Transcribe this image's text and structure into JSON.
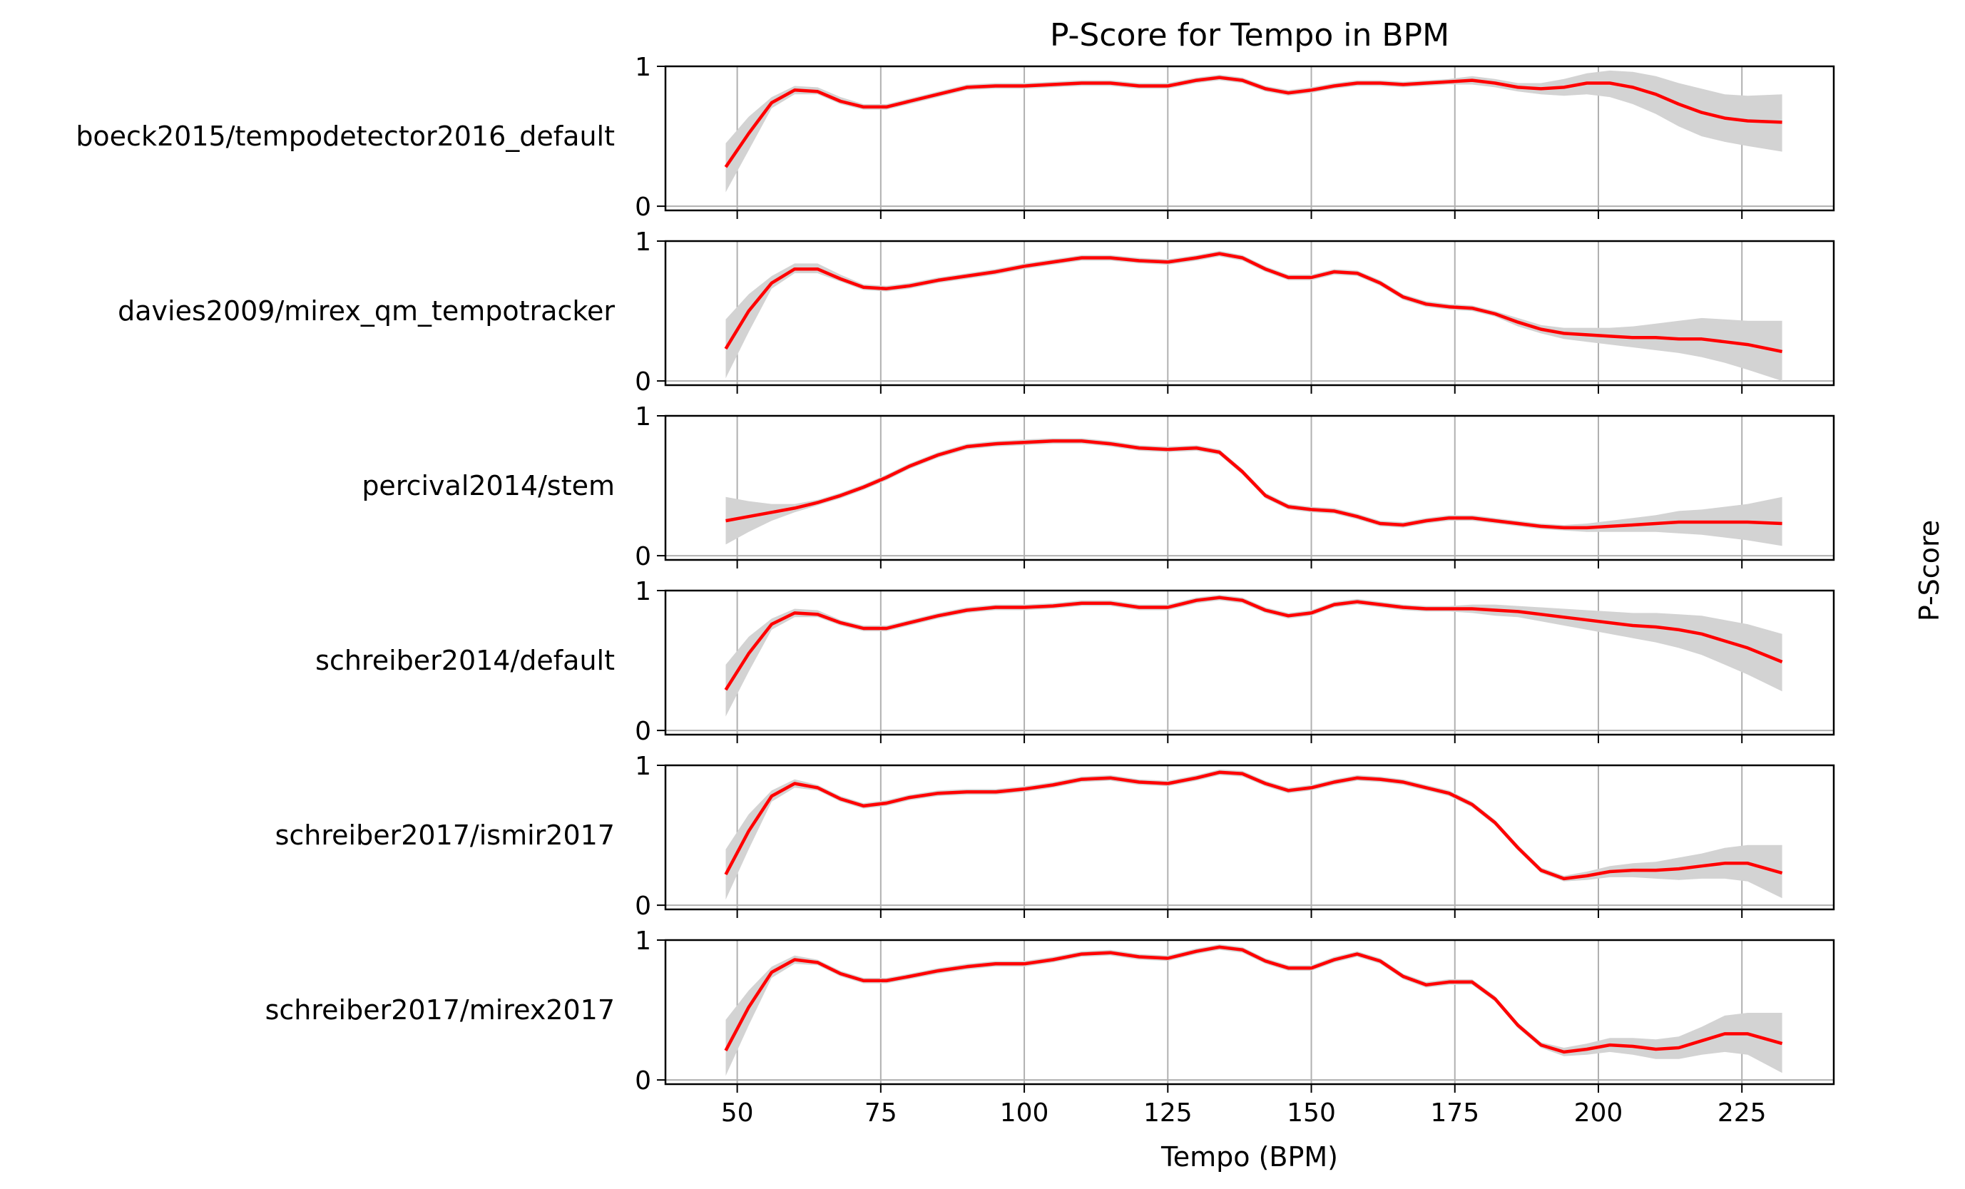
{
  "chart_data": {
    "type": "line",
    "title": "P-Score for Tempo in BPM",
    "xlabel": "Tempo (BPM)",
    "ylabel": "P-Score",
    "xlim": [
      37.5,
      241
    ],
    "ylim": [
      -0.03,
      1.0
    ],
    "xticks": [
      50,
      75,
      100,
      125,
      150,
      175,
      200,
      225
    ],
    "yticks": [
      0,
      1
    ],
    "grid": true,
    "line_color": "#ff0000",
    "band_color": "#d3d3d3",
    "x": [
      48,
      52,
      56,
      60,
      64,
      68,
      72,
      76,
      80,
      85,
      90,
      95,
      100,
      105,
      110,
      115,
      120,
      125,
      130,
      134,
      138,
      142,
      146,
      150,
      154,
      158,
      162,
      166,
      170,
      174,
      178,
      182,
      186,
      190,
      194,
      198,
      202,
      206,
      210,
      214,
      218,
      222,
      226,
      232
    ],
    "series": [
      {
        "name": "boeck2015/tempodetector2016_default",
        "values": [
          0.28,
          0.52,
          0.74,
          0.83,
          0.82,
          0.75,
          0.71,
          0.71,
          0.75,
          0.8,
          0.85,
          0.86,
          0.86,
          0.87,
          0.88,
          0.88,
          0.86,
          0.86,
          0.9,
          0.92,
          0.9,
          0.84,
          0.81,
          0.83,
          0.86,
          0.88,
          0.88,
          0.87,
          0.88,
          0.89,
          0.9,
          0.88,
          0.85,
          0.84,
          0.85,
          0.88,
          0.88,
          0.85,
          0.8,
          0.73,
          0.67,
          0.63,
          0.61,
          0.6
        ],
        "lower": [
          0.1,
          0.4,
          0.7,
          0.8,
          0.8,
          0.73,
          0.69,
          0.69,
          0.73,
          0.78,
          0.83,
          0.84,
          0.84,
          0.85,
          0.86,
          0.86,
          0.84,
          0.84,
          0.88,
          0.9,
          0.88,
          0.82,
          0.79,
          0.81,
          0.84,
          0.86,
          0.86,
          0.85,
          0.86,
          0.87,
          0.87,
          0.85,
          0.82,
          0.8,
          0.79,
          0.8,
          0.78,
          0.73,
          0.66,
          0.57,
          0.5,
          0.46,
          0.43,
          0.39
        ],
        "upper": [
          0.45,
          0.64,
          0.78,
          0.86,
          0.85,
          0.78,
          0.73,
          0.73,
          0.77,
          0.82,
          0.87,
          0.88,
          0.88,
          0.89,
          0.9,
          0.9,
          0.88,
          0.88,
          0.92,
          0.94,
          0.92,
          0.86,
          0.83,
          0.85,
          0.88,
          0.9,
          0.9,
          0.89,
          0.9,
          0.91,
          0.93,
          0.91,
          0.88,
          0.88,
          0.91,
          0.95,
          0.97,
          0.96,
          0.93,
          0.88,
          0.84,
          0.8,
          0.79,
          0.8
        ]
      },
      {
        "name": "davies2009/mirex_qm_tempotracker",
        "values": [
          0.23,
          0.5,
          0.7,
          0.8,
          0.8,
          0.73,
          0.67,
          0.66,
          0.68,
          0.72,
          0.75,
          0.78,
          0.82,
          0.85,
          0.88,
          0.88,
          0.86,
          0.85,
          0.88,
          0.91,
          0.88,
          0.8,
          0.74,
          0.74,
          0.78,
          0.77,
          0.7,
          0.6,
          0.55,
          0.53,
          0.52,
          0.48,
          0.42,
          0.37,
          0.34,
          0.33,
          0.32,
          0.31,
          0.31,
          0.3,
          0.3,
          0.28,
          0.26,
          0.21
        ],
        "lower": [
          0.02,
          0.35,
          0.66,
          0.77,
          0.77,
          0.71,
          0.65,
          0.64,
          0.66,
          0.7,
          0.73,
          0.76,
          0.8,
          0.83,
          0.86,
          0.86,
          0.84,
          0.83,
          0.86,
          0.89,
          0.86,
          0.78,
          0.72,
          0.72,
          0.76,
          0.75,
          0.68,
          0.58,
          0.53,
          0.51,
          0.5,
          0.46,
          0.39,
          0.34,
          0.3,
          0.28,
          0.26,
          0.24,
          0.22,
          0.2,
          0.17,
          0.13,
          0.08,
          0.0
        ],
        "upper": [
          0.44,
          0.62,
          0.75,
          0.84,
          0.84,
          0.76,
          0.69,
          0.68,
          0.7,
          0.74,
          0.77,
          0.8,
          0.84,
          0.87,
          0.9,
          0.9,
          0.88,
          0.87,
          0.9,
          0.93,
          0.9,
          0.82,
          0.76,
          0.76,
          0.8,
          0.79,
          0.72,
          0.62,
          0.57,
          0.55,
          0.54,
          0.5,
          0.45,
          0.4,
          0.38,
          0.38,
          0.38,
          0.39,
          0.41,
          0.43,
          0.45,
          0.44,
          0.43,
          0.43
        ]
      },
      {
        "name": "percival2014/stem",
        "values": [
          0.25,
          0.28,
          0.31,
          0.34,
          0.38,
          0.43,
          0.49,
          0.56,
          0.64,
          0.72,
          0.78,
          0.8,
          0.81,
          0.82,
          0.82,
          0.8,
          0.77,
          0.76,
          0.77,
          0.74,
          0.6,
          0.43,
          0.35,
          0.33,
          0.32,
          0.28,
          0.23,
          0.22,
          0.25,
          0.27,
          0.27,
          0.25,
          0.23,
          0.21,
          0.2,
          0.2,
          0.21,
          0.22,
          0.23,
          0.24,
          0.24,
          0.24,
          0.24,
          0.23
        ],
        "lower": [
          0.08,
          0.17,
          0.25,
          0.31,
          0.36,
          0.41,
          0.47,
          0.54,
          0.62,
          0.7,
          0.76,
          0.78,
          0.79,
          0.8,
          0.8,
          0.78,
          0.75,
          0.74,
          0.75,
          0.72,
          0.58,
          0.41,
          0.33,
          0.31,
          0.3,
          0.26,
          0.21,
          0.2,
          0.23,
          0.25,
          0.25,
          0.23,
          0.21,
          0.19,
          0.18,
          0.17,
          0.17,
          0.17,
          0.17,
          0.16,
          0.15,
          0.13,
          0.11,
          0.07
        ],
        "upper": [
          0.42,
          0.39,
          0.37,
          0.37,
          0.4,
          0.45,
          0.51,
          0.58,
          0.66,
          0.74,
          0.8,
          0.82,
          0.83,
          0.84,
          0.84,
          0.82,
          0.79,
          0.78,
          0.79,
          0.76,
          0.62,
          0.45,
          0.37,
          0.35,
          0.34,
          0.3,
          0.25,
          0.24,
          0.27,
          0.29,
          0.29,
          0.27,
          0.25,
          0.23,
          0.22,
          0.23,
          0.25,
          0.27,
          0.29,
          0.32,
          0.33,
          0.35,
          0.37,
          0.42
        ]
      },
      {
        "name": "schreiber2014/default",
        "values": [
          0.29,
          0.55,
          0.76,
          0.84,
          0.83,
          0.77,
          0.73,
          0.73,
          0.77,
          0.82,
          0.86,
          0.88,
          0.88,
          0.89,
          0.91,
          0.91,
          0.88,
          0.88,
          0.93,
          0.95,
          0.93,
          0.86,
          0.82,
          0.84,
          0.9,
          0.92,
          0.9,
          0.88,
          0.87,
          0.87,
          0.87,
          0.86,
          0.85,
          0.83,
          0.81,
          0.79,
          0.77,
          0.75,
          0.74,
          0.72,
          0.69,
          0.64,
          0.59,
          0.49
        ],
        "lower": [
          0.1,
          0.42,
          0.72,
          0.81,
          0.81,
          0.75,
          0.71,
          0.71,
          0.75,
          0.8,
          0.84,
          0.86,
          0.86,
          0.87,
          0.89,
          0.89,
          0.86,
          0.86,
          0.91,
          0.93,
          0.91,
          0.84,
          0.8,
          0.82,
          0.88,
          0.9,
          0.88,
          0.86,
          0.85,
          0.85,
          0.84,
          0.82,
          0.81,
          0.78,
          0.75,
          0.72,
          0.69,
          0.66,
          0.63,
          0.59,
          0.54,
          0.47,
          0.4,
          0.28
        ],
        "upper": [
          0.47,
          0.67,
          0.8,
          0.87,
          0.86,
          0.79,
          0.75,
          0.75,
          0.79,
          0.84,
          0.88,
          0.9,
          0.9,
          0.91,
          0.93,
          0.93,
          0.9,
          0.9,
          0.95,
          0.97,
          0.95,
          0.88,
          0.84,
          0.86,
          0.92,
          0.94,
          0.92,
          0.9,
          0.89,
          0.89,
          0.9,
          0.9,
          0.89,
          0.88,
          0.87,
          0.86,
          0.85,
          0.84,
          0.84,
          0.83,
          0.82,
          0.79,
          0.76,
          0.69
        ]
      },
      {
        "name": "schreiber2017/ismir2017",
        "values": [
          0.22,
          0.53,
          0.78,
          0.87,
          0.84,
          0.76,
          0.71,
          0.73,
          0.77,
          0.8,
          0.81,
          0.81,
          0.83,
          0.86,
          0.9,
          0.91,
          0.88,
          0.87,
          0.91,
          0.95,
          0.94,
          0.87,
          0.82,
          0.84,
          0.88,
          0.91,
          0.9,
          0.88,
          0.84,
          0.8,
          0.72,
          0.59,
          0.41,
          0.25,
          0.19,
          0.21,
          0.24,
          0.25,
          0.25,
          0.26,
          0.28,
          0.3,
          0.3,
          0.23
        ],
        "lower": [
          0.04,
          0.4,
          0.74,
          0.84,
          0.82,
          0.74,
          0.69,
          0.71,
          0.75,
          0.78,
          0.79,
          0.79,
          0.81,
          0.84,
          0.88,
          0.89,
          0.86,
          0.85,
          0.89,
          0.93,
          0.92,
          0.85,
          0.8,
          0.82,
          0.86,
          0.89,
          0.88,
          0.86,
          0.82,
          0.78,
          0.7,
          0.57,
          0.39,
          0.23,
          0.17,
          0.18,
          0.2,
          0.2,
          0.19,
          0.18,
          0.19,
          0.19,
          0.17,
          0.05
        ],
        "upper": [
          0.4,
          0.65,
          0.82,
          0.9,
          0.86,
          0.78,
          0.73,
          0.75,
          0.79,
          0.82,
          0.83,
          0.83,
          0.85,
          0.88,
          0.92,
          0.93,
          0.9,
          0.89,
          0.93,
          0.97,
          0.96,
          0.89,
          0.84,
          0.86,
          0.9,
          0.93,
          0.92,
          0.9,
          0.86,
          0.82,
          0.74,
          0.61,
          0.43,
          0.27,
          0.21,
          0.24,
          0.28,
          0.3,
          0.31,
          0.34,
          0.37,
          0.41,
          0.43,
          0.43
        ]
      },
      {
        "name": "schreiber2017/mirex2017",
        "values": [
          0.21,
          0.52,
          0.77,
          0.86,
          0.84,
          0.76,
          0.71,
          0.71,
          0.74,
          0.78,
          0.81,
          0.83,
          0.83,
          0.86,
          0.9,
          0.91,
          0.88,
          0.87,
          0.92,
          0.95,
          0.93,
          0.85,
          0.8,
          0.8,
          0.86,
          0.9,
          0.85,
          0.74,
          0.68,
          0.7,
          0.7,
          0.58,
          0.39,
          0.25,
          0.2,
          0.22,
          0.25,
          0.24,
          0.22,
          0.23,
          0.28,
          0.33,
          0.33,
          0.26
        ],
        "lower": [
          0.03,
          0.39,
          0.73,
          0.83,
          0.82,
          0.74,
          0.69,
          0.69,
          0.72,
          0.76,
          0.79,
          0.81,
          0.81,
          0.84,
          0.88,
          0.89,
          0.86,
          0.85,
          0.9,
          0.93,
          0.91,
          0.83,
          0.78,
          0.78,
          0.84,
          0.88,
          0.83,
          0.72,
          0.66,
          0.68,
          0.68,
          0.56,
          0.37,
          0.23,
          0.17,
          0.18,
          0.2,
          0.18,
          0.15,
          0.15,
          0.18,
          0.2,
          0.18,
          0.05
        ],
        "upper": [
          0.43,
          0.64,
          0.81,
          0.89,
          0.86,
          0.78,
          0.73,
          0.73,
          0.76,
          0.8,
          0.83,
          0.85,
          0.85,
          0.88,
          0.92,
          0.93,
          0.9,
          0.89,
          0.94,
          0.97,
          0.95,
          0.87,
          0.82,
          0.82,
          0.88,
          0.92,
          0.87,
          0.76,
          0.7,
          0.72,
          0.72,
          0.6,
          0.41,
          0.27,
          0.23,
          0.26,
          0.3,
          0.3,
          0.29,
          0.31,
          0.38,
          0.46,
          0.48,
          0.48
        ]
      }
    ]
  }
}
